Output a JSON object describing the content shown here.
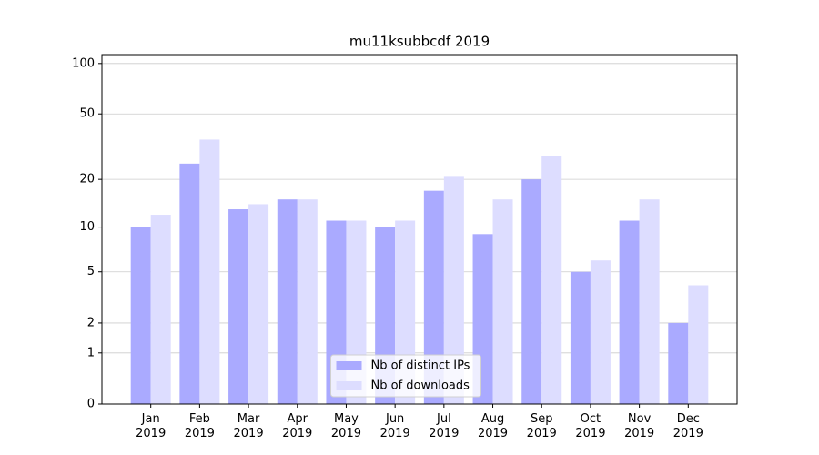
{
  "chart_data": {
    "type": "bar",
    "title": "mu11ksubbcdf 2019",
    "scale": "log1p",
    "categories": [
      "Jan\n2019",
      "Feb\n2019",
      "Mar\n2019",
      "Apr\n2019",
      "May\n2019",
      "Jun\n2019",
      "Jul\n2019",
      "Aug\n2019",
      "Sep\n2019",
      "Oct\n2019",
      "Nov\n2019",
      "Dec\n2019"
    ],
    "series": [
      {
        "name": "Nb of distinct IPs",
        "color": "#aaaaff",
        "values": [
          10,
          25,
          13,
          15,
          11,
          10,
          17,
          9,
          20,
          5,
          11,
          2
        ]
      },
      {
        "name": "Nb of downloads",
        "color": "#ddddff",
        "values": [
          12,
          35,
          14,
          15,
          11,
          11,
          21,
          15,
          28,
          6,
          15,
          4
        ]
      }
    ],
    "ylim": [
      0,
      113
    ],
    "yticks": [
      0,
      1,
      2,
      5,
      10,
      20,
      50,
      100
    ],
    "grid": true,
    "legend": "lower center"
  }
}
